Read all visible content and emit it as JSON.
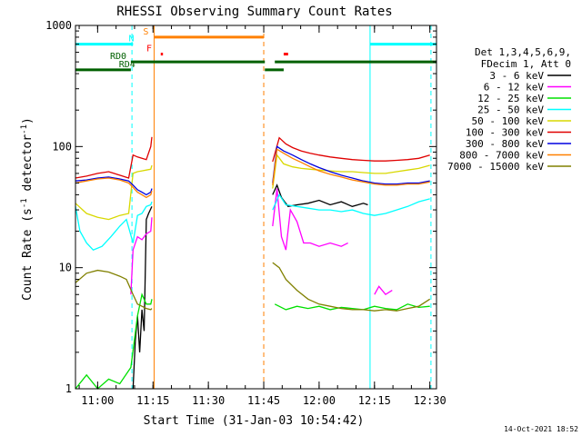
{
  "chart_data": {
    "type": "line",
    "title": "RHESSI Observing Summary Count Rates",
    "xlabel": "Start Time (31-Jan-03 10:54:42)",
    "ylabel_prefix": "Count Rate (s",
    "ylabel_sup1": "-1",
    "ylabel_mid": " detector",
    "ylabel_sup2": "-1",
    "ylabel_suffix": ")",
    "yscale": "log",
    "ylim": [
      1,
      1000
    ],
    "xlim_minutes": [
      10.9,
      12.53
    ],
    "x_ticks": [
      {
        "label": "11:00",
        "h": 11.0
      },
      {
        "label": "11:15",
        "h": 11.25
      },
      {
        "label": "11:30",
        "h": 11.5
      },
      {
        "label": "11:45",
        "h": 11.75
      },
      {
        "label": "12:00",
        "h": 12.0
      },
      {
        "label": "12:15",
        "h": 12.25
      },
      {
        "label": "12:30",
        "h": 12.5
      }
    ],
    "y_ticks": [
      {
        "label": "1",
        "v": 1
      },
      {
        "label": "10",
        "v": 10
      },
      {
        "label": "100",
        "v": 100
      },
      {
        "label": "1000",
        "v": 1000
      }
    ],
    "legend_header": [
      "Det 1,3,4,5,6,9,",
      "FDecim 1, Att 0"
    ],
    "legend_placement": "right",
    "series": [
      {
        "name": "3 - 6 keV",
        "color": "#000000",
        "segments": [
          {
            "x": [
              11.16,
              11.17,
              11.18,
              11.19,
              11.2,
              11.21,
              11.22,
              11.23,
              11.245
            ],
            "y": [
              1,
              2.5,
              4,
              2,
              4.5,
              3,
              25,
              28,
              32
            ]
          },
          {
            "x": [
              11.79,
              11.81,
              11.83,
              11.86,
              11.9,
              11.95,
              12.0,
              12.05,
              12.1,
              12.15,
              12.2,
              12.22
            ],
            "y": [
              40,
              48,
              38,
              32,
              33,
              34,
              36,
              33,
              35,
              32,
              34,
              33
            ]
          }
        ]
      },
      {
        "name": "6 - 12 keV",
        "color": "#ff00ff",
        "segments": [
          {
            "x": [
              11.15,
              11.16,
              11.18,
              11.2,
              11.22,
              11.24,
              11.245
            ],
            "y": [
              6,
              14,
              18,
              17,
              19,
              20,
              26
            ]
          },
          {
            "x": [
              11.79,
              11.81,
              11.83,
              11.85,
              11.87,
              11.9,
              11.93,
              11.96,
              12.0,
              12.05,
              12.1,
              12.13
            ],
            "y": [
              22,
              45,
              18,
              14,
              30,
              24,
              16,
              16,
              15,
              16,
              15,
              16
            ]
          },
          {
            "x": [
              12.25,
              12.27,
              12.3,
              12.33
            ],
            "y": [
              6,
              7,
              6,
              6.5
            ]
          }
        ]
      },
      {
        "name": "12 - 25 keV",
        "color": "#00e000",
        "segments": [
          {
            "x": [
              10.9,
              10.95,
              11.0,
              11.05,
              11.1,
              11.15,
              11.18,
              11.2,
              11.22,
              11.24,
              11.245
            ],
            "y": [
              1,
              1.3,
              1,
              1.2,
              1.1,
              1.5,
              4,
              6,
              5,
              5,
              5.5
            ]
          },
          {
            "x": [
              11.8,
              11.85,
              11.9,
              11.95,
              12.0,
              12.05,
              12.1,
              12.15,
              12.2,
              12.25,
              12.3,
              12.35,
              12.4,
              12.45,
              12.5
            ],
            "y": [
              5,
              4.5,
              4.8,
              4.6,
              4.8,
              4.5,
              4.7,
              4.6,
              4.5,
              4.8,
              4.6,
              4.5,
              5,
              4.7,
              4.8
            ]
          }
        ]
      },
      {
        "name": "25 - 50 keV",
        "color": "#00ffff",
        "segments": [
          {
            "x": [
              10.9,
              10.92,
              10.95,
              10.98,
              11.02,
              11.06,
              11.1,
              11.13,
              11.16,
              11.18,
              11.2,
              11.22,
              11.24,
              11.245
            ],
            "y": [
              32,
              20,
              16,
              14,
              15,
              18,
              22,
              25,
              16,
              27,
              28,
              32,
              33,
              35
            ]
          },
          {
            "x": [
              11.79,
              11.82,
              11.85,
              11.9,
              11.95,
              12.0,
              12.05,
              12.1,
              12.15,
              12.2,
              12.25,
              12.3,
              12.35,
              12.4,
              12.45,
              12.5
            ],
            "y": [
              30,
              40,
              33,
              32,
              31,
              30,
              30,
              29,
              30,
              28,
              27,
              28,
              30,
              32,
              35,
              37
            ]
          }
        ]
      },
      {
        "name": "50 - 100 keV",
        "color": "#d8d800",
        "segments": [
          {
            "x": [
              10.9,
              10.95,
              11.0,
              11.05,
              11.1,
              11.14,
              11.16,
              11.18,
              11.2,
              11.22,
              11.24,
              11.245
            ],
            "y": [
              34,
              28,
              26,
              25,
              27,
              28,
              60,
              62,
              63,
              64,
              65,
              70
            ]
          },
          {
            "x": [
              11.79,
              11.81,
              11.84,
              11.88,
              11.92,
              11.96,
              12.0,
              12.05,
              12.1,
              12.15,
              12.2,
              12.25,
              12.3,
              12.35,
              12.4,
              12.45,
              12.5
            ],
            "y": [
              45,
              85,
              72,
              68,
              66,
              65,
              64,
              63,
              62,
              62,
              61,
              60,
              60,
              62,
              64,
              66,
              70
            ]
          }
        ]
      },
      {
        "name": "100 - 300 keV",
        "color": "#e00000",
        "segments": [
          {
            "x": [
              10.9,
              10.95,
              11.0,
              11.05,
              11.1,
              11.14,
              11.16,
              11.18,
              11.2,
              11.22,
              11.24,
              11.245
            ],
            "y": [
              55,
              57,
              60,
              62,
              58,
              55,
              85,
              82,
              80,
              78,
              100,
              120
            ]
          },
          {
            "x": [
              11.79,
              11.82,
              11.85,
              11.88,
              11.92,
              11.96,
              12.0,
              12.05,
              12.1,
              12.15,
              12.2,
              12.25,
              12.3,
              12.35,
              12.4,
              12.45,
              12.5
            ],
            "y": [
              75,
              118,
              105,
              98,
              92,
              88,
              85,
              82,
              80,
              78,
              77,
              76,
              76,
              77,
              78,
              80,
              85
            ]
          }
        ]
      },
      {
        "name": "300 - 800 keV",
        "color": "#0000e0",
        "segments": [
          {
            "x": [
              10.9,
              10.95,
              11.0,
              11.05,
              11.1,
              11.14,
              11.16,
              11.18,
              11.2,
              11.22,
              11.24,
              11.245
            ],
            "y": [
              52,
              53,
              55,
              56,
              54,
              52,
              48,
              44,
              42,
              40,
              42,
              45
            ]
          },
          {
            "x": [
              11.79,
              11.81,
              11.84,
              11.88,
              11.92,
              11.96,
              12.0,
              12.05,
              12.1,
              12.15,
              12.2,
              12.25,
              12.3,
              12.35,
              12.4,
              12.45,
              12.5
            ],
            "y": [
              50,
              100,
              92,
              85,
              78,
              72,
              67,
              62,
              58,
              55,
              52,
              50,
              49,
              49,
              50,
              50,
              52
            ]
          }
        ]
      },
      {
        "name": "800 - 7000 keV",
        "color": "#ff8000",
        "segments": [
          {
            "x": [
              10.9,
              10.95,
              11.0,
              11.05,
              11.1,
              11.14,
              11.16,
              11.18,
              11.2,
              11.22,
              11.24,
              11.245
            ],
            "y": [
              50,
              52,
              54,
              55,
              53,
              50,
              46,
              42,
              40,
              38,
              40,
              43
            ]
          },
          {
            "x": [
              11.79,
              11.81,
              11.84,
              11.88,
              11.92,
              11.96,
              12.0,
              12.05,
              12.1,
              12.15,
              12.2,
              12.25,
              12.3,
              12.35,
              12.4,
              12.45,
              12.5
            ],
            "y": [
              48,
              95,
              88,
              80,
              74,
              68,
              63,
              59,
              56,
              53,
              51,
              49,
              48,
              48,
              49,
              49,
              51
            ]
          }
        ]
      },
      {
        "name": "7000 - 15000 keV",
        "color": "#808000",
        "segments": [
          {
            "x": [
              10.9,
              10.95,
              11.0,
              11.05,
              11.1,
              11.13,
              11.16,
              11.18,
              11.2,
              11.22,
              11.24,
              11.245
            ],
            "y": [
              7.5,
              9,
              9.5,
              9.2,
              8.5,
              8,
              6,
              5,
              4.8,
              4.6,
              4.5,
              4.6
            ]
          },
          {
            "x": [
              11.79,
              11.82,
              11.85,
              11.9,
              11.95,
              12.0,
              12.05,
              12.1,
              12.15,
              12.2,
              12.25,
              12.3,
              12.35,
              12.4,
              12.45,
              12.5
            ],
            "y": [
              11,
              10,
              8,
              6.5,
              5.5,
              5,
              4.8,
              4.6,
              4.5,
              4.5,
              4.4,
              4.5,
              4.4,
              4.6,
              4.8,
              5.5
            ]
          }
        ]
      }
    ],
    "state_bars": [
      {
        "label": "N",
        "color": "#00ffff",
        "level": 700,
        "segments": [
          [
            10.9,
            11.16
          ],
          [
            12.23,
            12.53
          ]
        ],
        "label_x": 11.165
      },
      {
        "label": "S",
        "color": "#ff8000",
        "level": 800,
        "segments": [
          [
            11.255,
            11.75
          ]
        ],
        "label_x": 11.23
      },
      {
        "label": "F",
        "color": "#ff0000",
        "level": 580,
        "segments": [
          [
            11.285,
            11.295
          ],
          [
            11.84,
            11.86
          ]
        ],
        "label_x": 11.245
      },
      {
        "label": "RD0",
        "color": "#006000",
        "level": 500,
        "segments": [
          [
            11.15,
            11.755
          ],
          [
            11.8,
            12.53
          ]
        ],
        "label_x": 11.13
      },
      {
        "label": "RD4",
        "color": "#006000",
        "level": 430,
        "segments": [
          [
            10.9,
            11.15
          ],
          [
            11.755,
            11.84
          ]
        ],
        "label_x": 11.17
      }
    ],
    "vertical_markers": [
      {
        "h": 11.155,
        "color": "#00ffff",
        "style": "dashed"
      },
      {
        "h": 11.255,
        "color": "#ff8000",
        "style": "solid"
      },
      {
        "h": 11.75,
        "color": "#ff8000",
        "style": "dashed"
      },
      {
        "h": 12.23,
        "color": "#00ffff",
        "style": "solid"
      },
      {
        "h": 12.505,
        "color": "#00ffff",
        "style": "dashed"
      }
    ],
    "footer_date": "14-Oct-2021 18:52"
  }
}
